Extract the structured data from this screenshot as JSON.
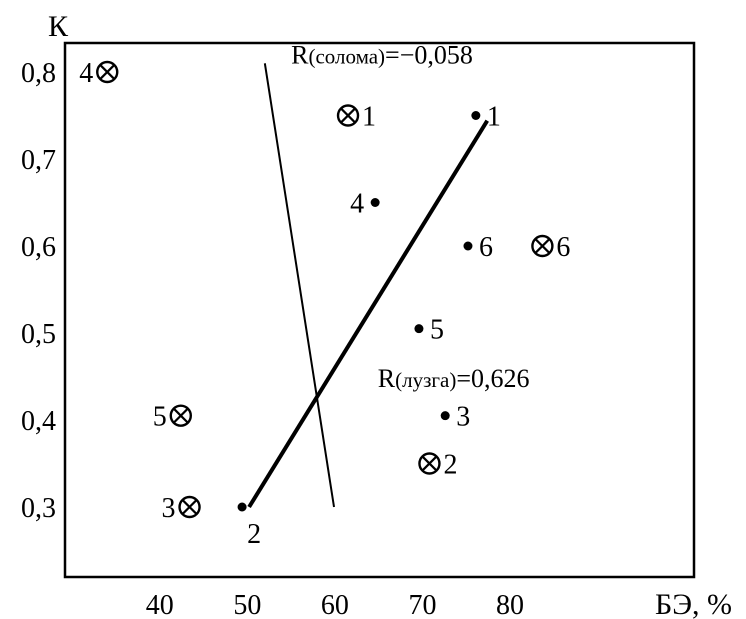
{
  "chart_data": {
    "type": "scatter",
    "title": "",
    "xlabel": "БЭ, %",
    "ylabel": "К",
    "xlim": [
      30,
      90
    ],
    "ylim": [
      0.22,
      0.85
    ],
    "x_ticks": [
      {
        "value": 40,
        "label": "40"
      },
      {
        "value": 50,
        "label": "50"
      },
      {
        "value": 60,
        "label": "60"
      },
      {
        "value": 70,
        "label": "70"
      },
      {
        "value": 80,
        "label": "80"
      }
    ],
    "y_ticks": [
      {
        "value": 0.8,
        "label": "0,8"
      },
      {
        "value": 0.7,
        "label": "0,7"
      },
      {
        "value": 0.6,
        "label": "0,6"
      },
      {
        "value": 0.5,
        "label": "0,5"
      },
      {
        "value": 0.4,
        "label": "0,4"
      },
      {
        "value": 0.3,
        "label": "0,3"
      }
    ],
    "grid": false,
    "legend": "none",
    "series": [
      {
        "marker": "dot",
        "points": [
          {
            "label": "1",
            "x": 76.1,
            "y": 0.75,
            "label_side": "right"
          },
          {
            "label": "2",
            "x": 49.4,
            "y": 0.3,
            "label_side": "below-right"
          },
          {
            "label": "3",
            "x": 72.6,
            "y": 0.405,
            "label_side": "right"
          },
          {
            "label": "4",
            "x": 64.6,
            "y": 0.65,
            "label_side": "left"
          },
          {
            "label": "5",
            "x": 69.6,
            "y": 0.505,
            "label_side": "right"
          },
          {
            "label": "6",
            "x": 75.2,
            "y": 0.6,
            "label_side": "right"
          }
        ]
      },
      {
        "marker": "circle-cross",
        "points": [
          {
            "label": "1",
            "x": 61.5,
            "y": 0.75,
            "label_side": "right"
          },
          {
            "label": "2",
            "x": 70.8,
            "y": 0.35,
            "label_side": "right"
          },
          {
            "label": "3",
            "x": 43.4,
            "y": 0.3,
            "label_side": "left"
          },
          {
            "label": "4",
            "x": 34.0,
            "y": 0.8,
            "label_side": "left"
          },
          {
            "label": "5",
            "x": 42.4,
            "y": 0.405,
            "label_side": "left"
          },
          {
            "label": "6",
            "x": 83.7,
            "y": 0.6,
            "label_side": "right"
          }
        ]
      }
    ],
    "lines": [
      {
        "points": [
          [
            52.0,
            0.81
          ],
          [
            59.9,
            0.3
          ]
        ],
        "weight": "thin"
      },
      {
        "points": [
          [
            50.2,
            0.3
          ],
          [
            77.4,
            0.744
          ]
        ],
        "weight": "thick"
      }
    ],
    "annotations": [
      {
        "prefix": "R",
        "sub": "(солома)",
        "suffix": "=−0,058",
        "x": 55.0,
        "y": 0.81
      },
      {
        "prefix": "R",
        "sub": "(лузга)",
        "suffix": "=0,626",
        "x": 64.9,
        "y": 0.438
      }
    ]
  }
}
